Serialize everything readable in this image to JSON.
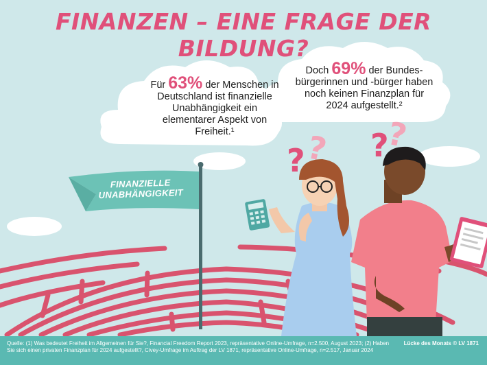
{
  "title": "FINANZEN – EINE FRAGE DER BILDUNG?",
  "cloud_left": {
    "pre": "Für ",
    "pct": "63%",
    "post": " der Menschen in Deutschland ist finanzielle Unabhängigkeit ein elementarer Aspekt von Freiheit.¹"
  },
  "cloud_right": {
    "pre": "Doch ",
    "pct": "69%",
    "post": " der Bundes-bürgerinnen und -bürger haben noch keinen Finanzplan für 2024 aufgestellt.²"
  },
  "flag": {
    "line1": "FINANZIELLE",
    "line2": "UNABHÄNGIGKEIT"
  },
  "footer": {
    "source": "Quelle: (1) Was bedeutet Freiheit im Allgemeinen für Sie?, Financial Freedom Report 2023, repräsentative Online-Umfrage, n=2.500, August 2023; (2) Haben Sie sich einen privaten Finanzplan für 2024 aufgestellt?, Civey-Umfrage im Auftrag der LV 1871, repräsentative Online-Umfrage, n=2.517, Januar 2024",
    "credit": "Lücke des Monats © LV 1871"
  },
  "icons": [
    "cloud-icon",
    "question-mark-icon",
    "calculator-icon",
    "clipboard-icon",
    "flag-icon",
    "maze-icon"
  ],
  "colors": {
    "accent": "#e0507a",
    "background": "#cfe8ea",
    "teal": "#5ab9b2",
    "maze": "#d9536e"
  }
}
